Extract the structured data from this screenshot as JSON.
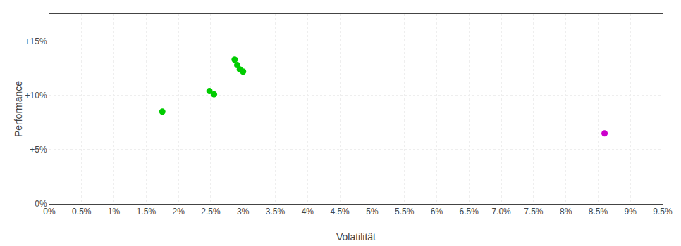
{
  "chart_data": {
    "type": "scatter",
    "xlabel": "Volatilität",
    "ylabel": "Performance",
    "xlim": [
      0,
      0.095
    ],
    "ylim": [
      0,
      0.175
    ],
    "xticks": [
      {
        "value": 0.0,
        "label": "0%"
      },
      {
        "value": 0.005,
        "label": "0.5%"
      },
      {
        "value": 0.01,
        "label": "1%"
      },
      {
        "value": 0.015,
        "label": "1.5%"
      },
      {
        "value": 0.02,
        "label": "2%"
      },
      {
        "value": 0.025,
        "label": "2.5%"
      },
      {
        "value": 0.03,
        "label": "3%"
      },
      {
        "value": 0.035,
        "label": "3.5%"
      },
      {
        "value": 0.04,
        "label": "4%"
      },
      {
        "value": 0.045,
        "label": "4.5%"
      },
      {
        "value": 0.05,
        "label": "5%"
      },
      {
        "value": 0.055,
        "label": "5.5%"
      },
      {
        "value": 0.06,
        "label": "6%"
      },
      {
        "value": 0.065,
        "label": "6.5%"
      },
      {
        "value": 0.07,
        "label": "7.0%"
      },
      {
        "value": 0.075,
        "label": "7.5%"
      },
      {
        "value": 0.08,
        "label": "8%"
      },
      {
        "value": 0.085,
        "label": "8.5%"
      },
      {
        "value": 0.09,
        "label": "9%"
      },
      {
        "value": 0.095,
        "label": "9.5%"
      }
    ],
    "yticks": [
      {
        "value": 0.0,
        "label": "0%"
      },
      {
        "value": 0.05,
        "label": "+5%"
      },
      {
        "value": 0.1,
        "label": "+10%"
      },
      {
        "value": 0.15,
        "label": "+15%"
      }
    ],
    "grid": true,
    "series": [
      {
        "color": "#00cc00",
        "x": [
          0.0175,
          0.0248,
          0.0255,
          0.0287,
          0.0291,
          0.0295,
          0.03
        ],
        "values": [
          0.085,
          0.104,
          0.101,
          0.133,
          0.128,
          0.124,
          0.122
        ]
      },
      {
        "color": "#cc00cc",
        "x": [
          0.086
        ],
        "values": [
          0.065
        ]
      }
    ]
  }
}
